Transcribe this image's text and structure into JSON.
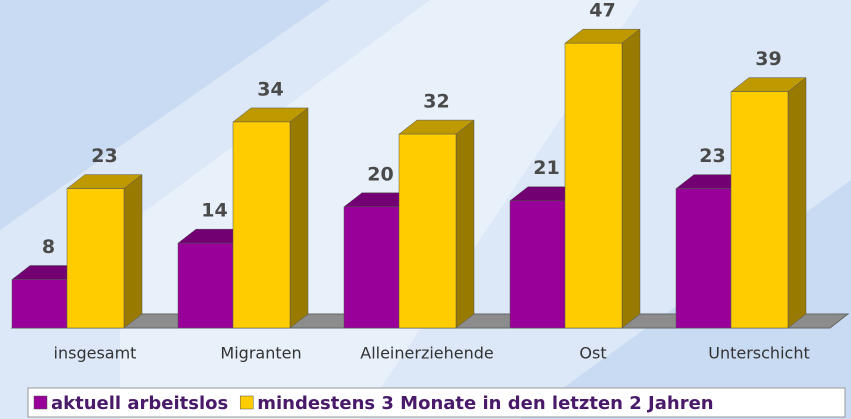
{
  "chart_data": {
    "type": "bar3d",
    "categories": [
      "insgesamt",
      "Migranten",
      "Alleinerziehende",
      "Ost",
      "Unterschicht"
    ],
    "series": [
      {
        "name": "aktuell arbeitslos",
        "color": "#990099",
        "values": [
          8,
          14,
          20,
          21,
          23
        ]
      },
      {
        "name": "mindestens 3 Monate in den letzten 2 Jahren",
        "color": "#ffcc00",
        "values": [
          23,
          34,
          32,
          47,
          39
        ]
      }
    ],
    "ylim": [
      0,
      50
    ],
    "legend": "bottom"
  }
}
